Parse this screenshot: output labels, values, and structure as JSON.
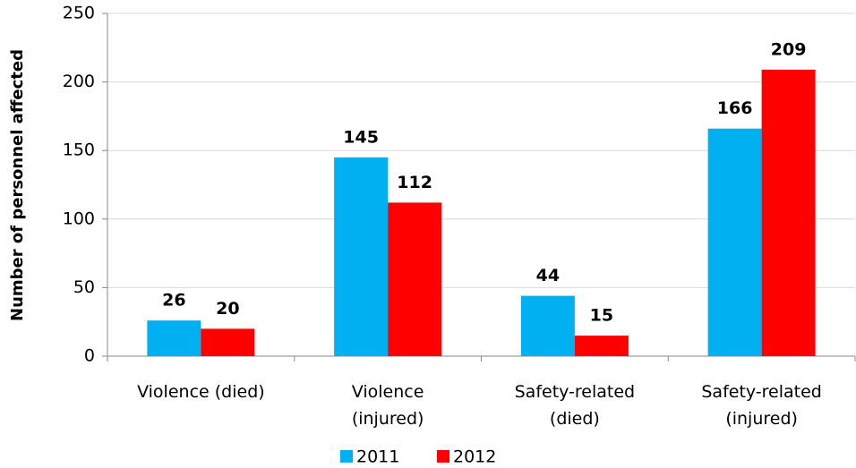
{
  "chart_data": {
    "type": "bar",
    "y_label": "Number of personnel affected",
    "categories": [
      [
        "Violence (died)"
      ],
      [
        "Violence",
        "(injured)"
      ],
      [
        "Safety-related",
        "(died)"
      ],
      [
        "Safety-related",
        "(injured)"
      ]
    ],
    "series": [
      {
        "name": "2011",
        "color": "#00b0f0",
        "values": [
          26,
          145,
          44,
          166
        ]
      },
      {
        "name": "2012",
        "color": "#ff0000",
        "values": [
          20,
          112,
          15,
          209
        ]
      }
    ],
    "ylim": [
      0,
      250
    ],
    "yticks": [
      0,
      50,
      100,
      150,
      200,
      250
    ],
    "grid": true,
    "legend": "bottom"
  }
}
